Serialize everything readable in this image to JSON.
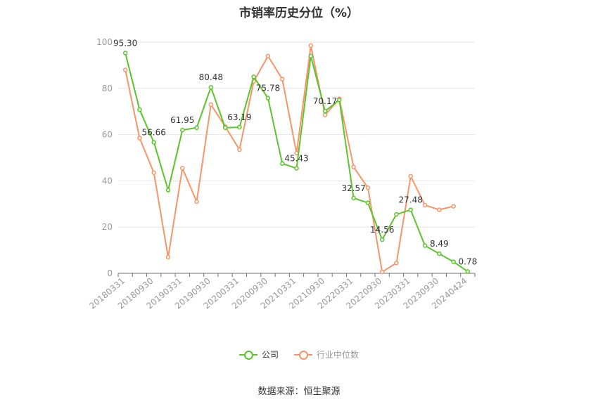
{
  "title": "市销率历史分位（%）",
  "source": "数据来源：恒生聚源",
  "colors": {
    "company": "#5cc42c",
    "industry": "#f5956a",
    "grid": "#e6e6e6",
    "axis": "#999999",
    "label": "#333333"
  },
  "legend": {
    "company": "公司",
    "industry": "行业中位数"
  },
  "chart_data": {
    "type": "line",
    "title": "市销率历史分位（%）",
    "xlabel": "",
    "ylabel": "",
    "ylim": [
      0,
      100
    ],
    "yticks": [
      0,
      20,
      40,
      60,
      80,
      100
    ],
    "grid": true,
    "legend_position": "bottom",
    "x": [
      "20180331",
      "20180630",
      "20180930",
      "20181231",
      "20190331",
      "20190630",
      "20190930",
      "20191231",
      "20200331",
      "20200630",
      "20200930",
      "20201231",
      "20210331",
      "20210630",
      "20210930",
      "20211231",
      "20220331",
      "20220630",
      "20220930",
      "20221231",
      "20230331",
      "20230630",
      "20230930",
      "20231231",
      "20240424"
    ],
    "x_tick_labels": [
      "20180331",
      "20180930",
      "20190331",
      "20190930",
      "20200331",
      "20200930",
      "20210331",
      "20210930",
      "20220331",
      "20220930",
      "20230331",
      "20230930",
      "20240424"
    ],
    "series": [
      {
        "name": "公司",
        "values": [
          95.3,
          70.8,
          56.66,
          36.0,
          61.95,
          63.0,
          80.48,
          63.0,
          63.19,
          85.0,
          75.78,
          47.5,
          45.43,
          94.0,
          70.17,
          75.0,
          32.57,
          30.5,
          14.56,
          25.5,
          27.48,
          12.0,
          8.49,
          5.0,
          0.78
        ],
        "labels": {
          "0": "95.30",
          "2": "56.66",
          "4": "61.95",
          "6": "80.48",
          "8": "63.19",
          "10": "75.78",
          "12": "45.43",
          "14": "70.17",
          "16": "32.57",
          "18": "14.56",
          "20": "27.48",
          "22": "8.49",
          "24": "0.78"
        }
      },
      {
        "name": "行业中位数",
        "values": [
          88.0,
          58.5,
          43.5,
          7.0,
          45.5,
          31.0,
          73.0,
          63.5,
          53.5,
          83.0,
          94.0,
          84.0,
          52.0,
          98.5,
          68.5,
          75.5,
          46.0,
          37.0,
          0.6,
          4.5,
          42.0,
          29.5,
          27.5,
          29.0,
          null
        ]
      }
    ]
  }
}
